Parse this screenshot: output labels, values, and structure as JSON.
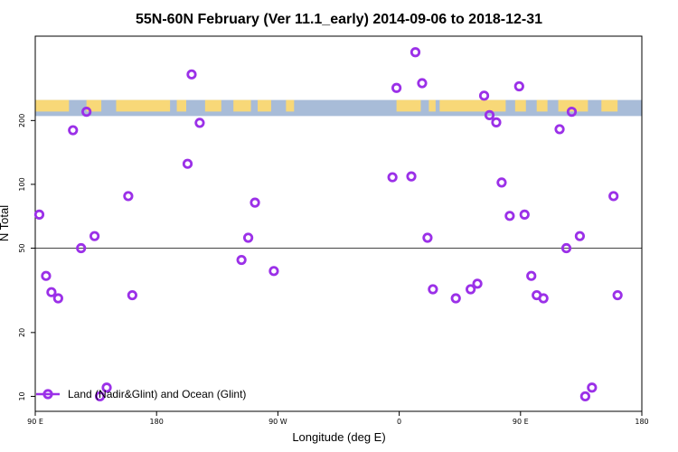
{
  "chart_data": {
    "type": "scatter",
    "title": "55N-60N February (Ver 11.1_early)   2014-09-06 to 2018-12-31",
    "xlabel": "Longitude (deg E)",
    "ylabel": "N Total",
    "y_scale": "log",
    "ylim": [
      8.5,
      500
    ],
    "x_axis": {
      "ticks": [
        {
          "pos": 0,
          "label": "90 E"
        },
        {
          "pos": 90,
          "label": "180"
        },
        {
          "pos": 180,
          "label": "90 W"
        },
        {
          "pos": 270,
          "label": "0"
        },
        {
          "pos": 360,
          "label": "90 E"
        },
        {
          "pos": 450,
          "label": "180"
        }
      ],
      "range": [
        0,
        450
      ]
    },
    "y_axis": {
      "ticks": [
        {
          "value": 10,
          "label": "10"
        },
        {
          "value": 20,
          "label": "20"
        },
        {
          "value": 50,
          "label": "50"
        },
        {
          "value": 100,
          "label": "100"
        },
        {
          "value": 200,
          "label": "200"
        }
      ]
    },
    "reference_line": 50,
    "land_ocean_band": {
      "ymin": 210,
      "ymax": 250,
      "land_color": "#f8d878",
      "ocean_color": "#a8bcd8"
    },
    "series": [
      {
        "name": "Land (Nadir&Glint) and Ocean (Glint)",
        "color": "#9b30e8",
        "points": [
          [
            3,
            72
          ],
          [
            8,
            37
          ],
          [
            12,
            31
          ],
          [
            17,
            29
          ],
          [
            28,
            180
          ],
          [
            34,
            50
          ],
          [
            38,
            220
          ],
          [
            44,
            57
          ],
          [
            48,
            10
          ],
          [
            53,
            11
          ],
          [
            69,
            88
          ],
          [
            72,
            30
          ],
          [
            113,
            125
          ],
          [
            116,
            330
          ],
          [
            122,
            195
          ],
          [
            153,
            44
          ],
          [
            158,
            56
          ],
          [
            163,
            82
          ],
          [
            177,
            39
          ],
          [
            265,
            108
          ],
          [
            268,
            285
          ],
          [
            279,
            109
          ],
          [
            282,
            420
          ],
          [
            287,
            300
          ],
          [
            291,
            56
          ],
          [
            295,
            32
          ],
          [
            312,
            29
          ],
          [
            323,
            32
          ],
          [
            328,
            34
          ],
          [
            333,
            262
          ],
          [
            337,
            212
          ],
          [
            342,
            196
          ],
          [
            346,
            102
          ],
          [
            352,
            71
          ],
          [
            359,
            290
          ],
          [
            363,
            72
          ],
          [
            368,
            37
          ],
          [
            372,
            30
          ],
          [
            377,
            29
          ],
          [
            389,
            182
          ],
          [
            394,
            50
          ],
          [
            398,
            220
          ],
          [
            404,
            57
          ],
          [
            408,
            10
          ],
          [
            413,
            11
          ],
          [
            429,
            88
          ],
          [
            432,
            30
          ]
        ]
      }
    ]
  }
}
